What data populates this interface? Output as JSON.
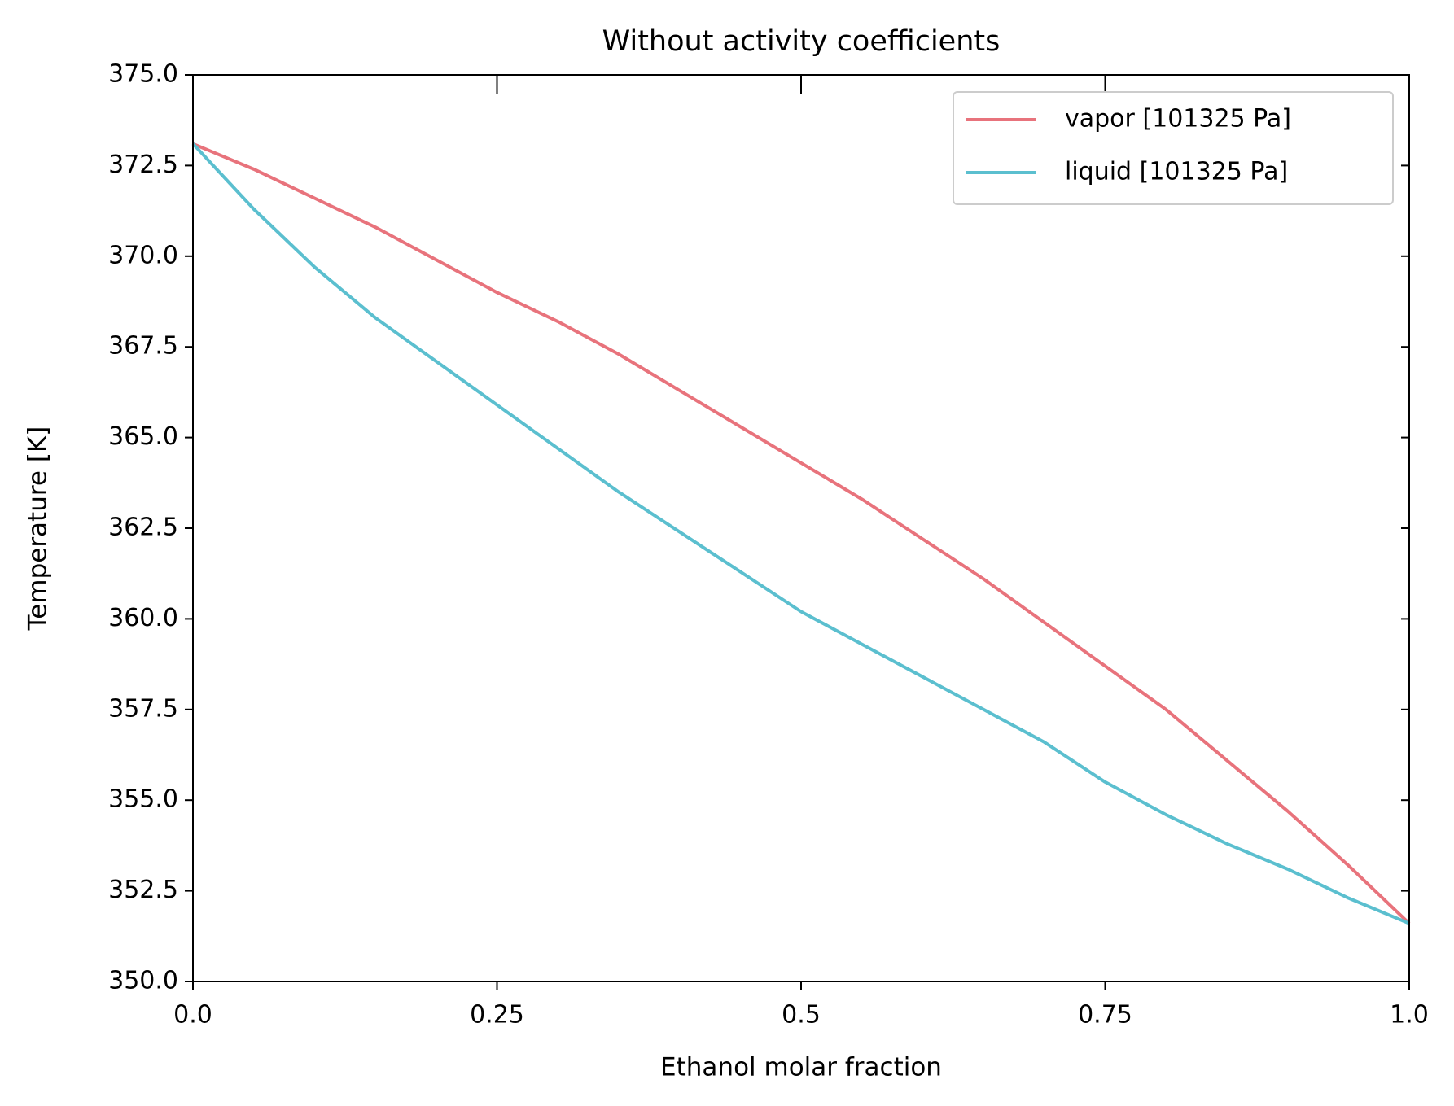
{
  "chart_data": {
    "type": "line",
    "title": "Without activity coefficients",
    "xlabel": "Ethanol molar fraction",
    "ylabel": "Temperature [K]",
    "x": [
      0,
      0.05,
      0.1,
      0.15,
      0.2,
      0.25,
      0.3,
      0.35,
      0.4,
      0.45,
      0.5,
      0.55,
      0.6,
      0.65,
      0.7,
      0.75,
      0.8,
      0.85,
      0.9,
      0.95,
      1
    ],
    "series": [
      {
        "name": "vapor [101325 Pa]",
        "color": "#e8737c",
        "values": [
          373.1,
          372.4,
          371.6,
          370.8,
          369.9,
          369.0,
          368.2,
          367.3,
          366.3,
          365.3,
          364.3,
          363.3,
          362.2,
          361.1,
          359.9,
          358.7,
          357.5,
          356.1,
          354.7,
          353.2,
          351.6
        ]
      },
      {
        "name": "liquid [101325 Pa]",
        "color": "#5bbfcf",
        "values": [
          373.1,
          371.3,
          369.7,
          368.3,
          367.1,
          365.9,
          364.7,
          363.5,
          362.4,
          361.3,
          360.2,
          359.3,
          358.4,
          357.5,
          356.6,
          355.5,
          354.6,
          353.8,
          353.1,
          352.3,
          351.6
        ]
      }
    ],
    "xlim": [
      0,
      1
    ],
    "ylim": [
      350,
      375
    ],
    "xticks": [
      {
        "value": 0,
        "label": "0.0"
      },
      0.25,
      0.5,
      0.75,
      {
        "value": 1,
        "label": "1.0"
      }
    ],
    "yticks": [
      {
        "value": 350,
        "label": "350.0"
      },
      352.5,
      {
        "value": 355,
        "label": "355.0"
      },
      357.5,
      {
        "value": 360,
        "label": "360.0"
      },
      362.5,
      {
        "value": 365,
        "label": "365.0"
      },
      367.5,
      {
        "value": 370,
        "label": "370.0"
      },
      372.5,
      {
        "value": 375,
        "label": "375.0"
      }
    ],
    "legend": "upper right",
    "grid": false
  }
}
